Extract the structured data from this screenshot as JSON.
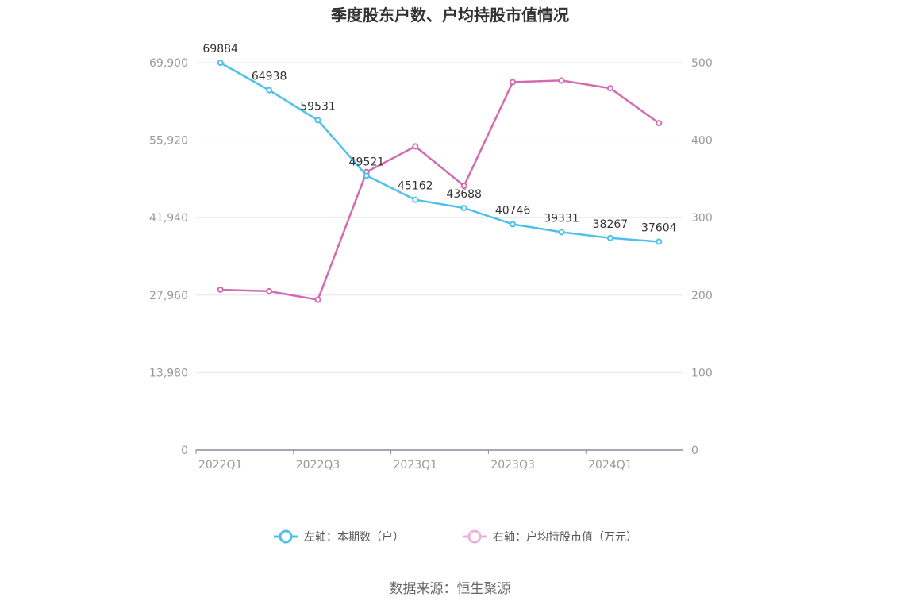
{
  "chart_data": {
    "type": "line",
    "title": "季度股东户数、户均持股市值情况",
    "categories": [
      "2022Q1",
      "2022Q2",
      "2022Q3",
      "2022Q4",
      "2023Q1",
      "2023Q2",
      "2023Q3",
      "2023Q4",
      "2024Q1",
      "2024Q2"
    ],
    "x_tick_labels": [
      "2022Q1",
      "2022Q3",
      "2023Q1",
      "2023Q3",
      "2024Q1"
    ],
    "left_axis": {
      "ylim": [
        0,
        69900
      ],
      "ticks": [
        "0",
        "13,980",
        "27,960",
        "41,940",
        "55,920",
        "69,900"
      ]
    },
    "right_axis": {
      "ylim": [
        0,
        500
      ],
      "ticks": [
        "0",
        "100",
        "200",
        "300",
        "400",
        "500"
      ]
    },
    "series": [
      {
        "name": "左轴：本期数（户）",
        "axis": "left",
        "color": "#4fc0ec",
        "values": [
          69884,
          64938,
          59531,
          49521,
          45162,
          43688,
          40746,
          39331,
          38267,
          37604
        ],
        "labels": [
          "69884",
          "64938",
          "59531",
          "49521",
          "45162",
          "43688",
          "40746",
          "39331",
          "38267",
          "37604"
        ]
      },
      {
        "name": "右轴：户均持股市值（万元）",
        "axis": "right",
        "color": "#d36bb3",
        "values": [
          207,
          205,
          194,
          359,
          392,
          341,
          475,
          477,
          467,
          422
        ]
      }
    ],
    "legend_position": "bottom-center",
    "grid": true
  },
  "source_text": "数据来源：恒生聚源"
}
